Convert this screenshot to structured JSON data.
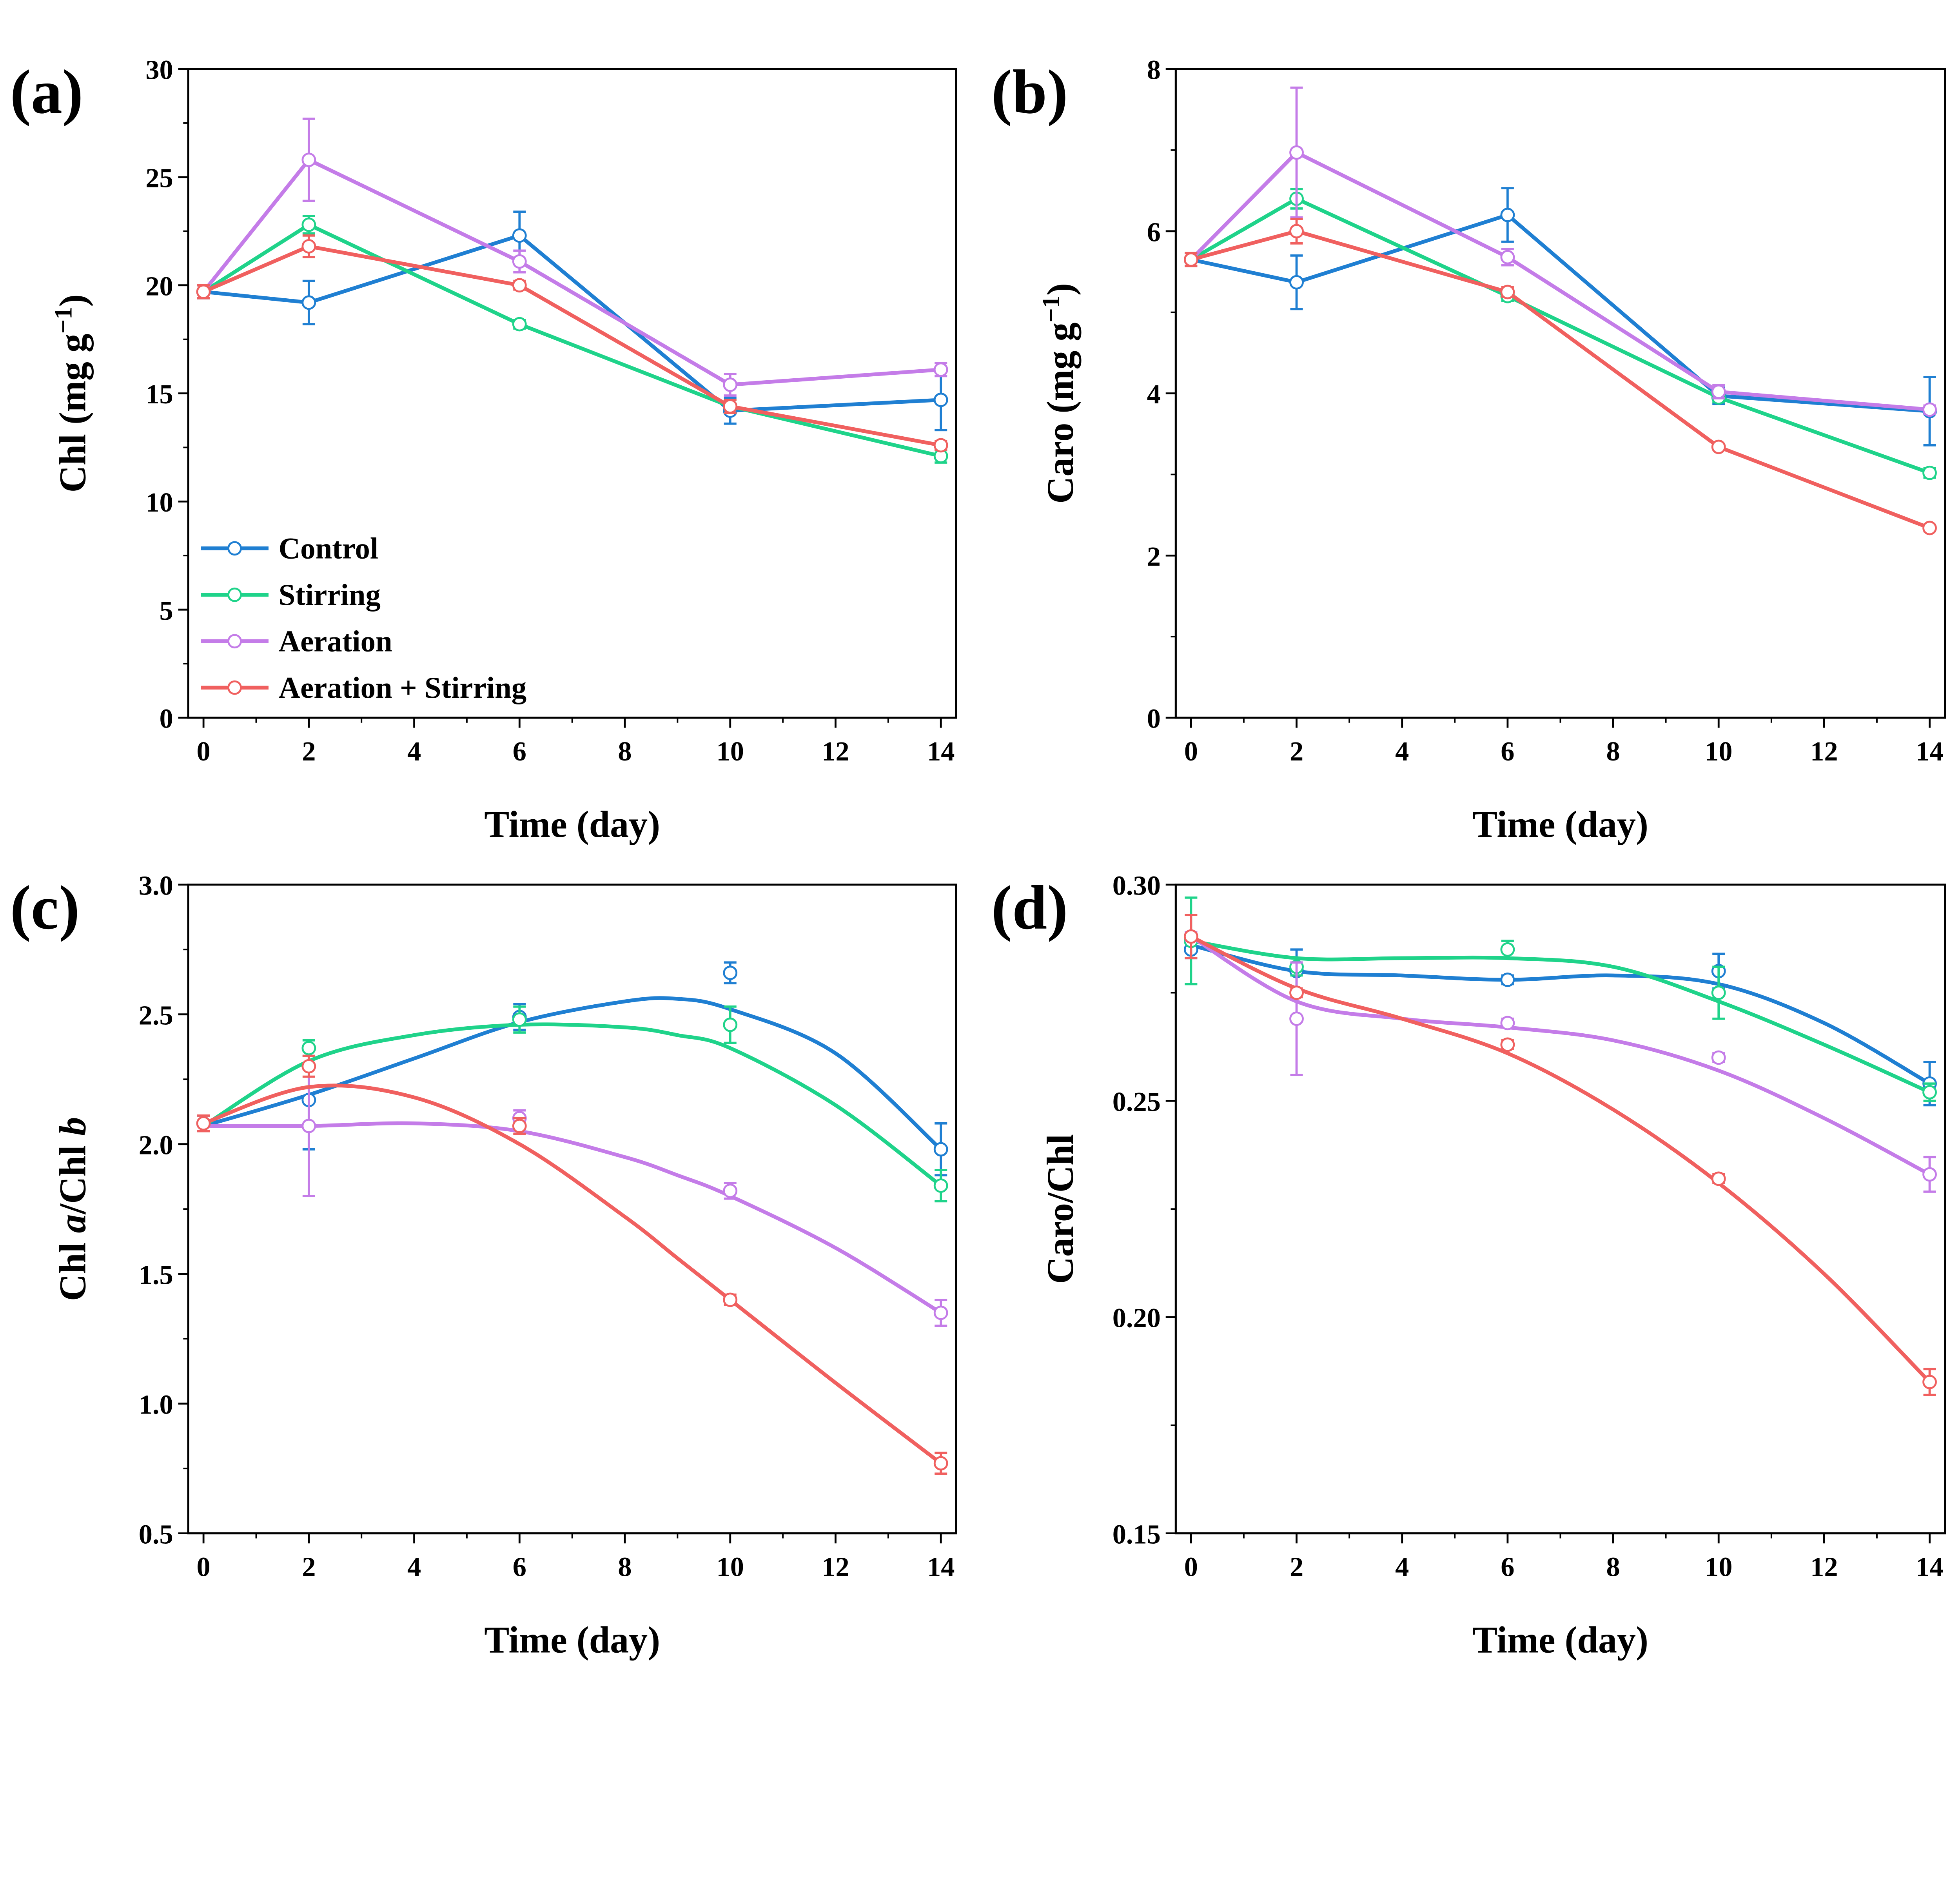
{
  "series_colors": {
    "Control": "#1f7fd2",
    "Stirring": "#1fd38a",
    "Aeration": "#c47ce8",
    "Aeration + Stirring": "#f0605f"
  },
  "chart_data": [
    {
      "panel": "(a)",
      "type": "line",
      "xlabel": "Time (day)",
      "ylabel_parts": [
        {
          "t": "Chl (mg g",
          "s": "n"
        },
        {
          "t": "−1",
          "s": "sup"
        },
        {
          "t": ")",
          "s": "n"
        }
      ],
      "xlim": [
        -0.29,
        14.29
      ],
      "ylim": [
        0,
        30
      ],
      "xticks": [
        0,
        2,
        4,
        6,
        8,
        10,
        12,
        14
      ],
      "yticks": [
        0,
        5,
        10,
        15,
        20,
        25,
        30
      ],
      "x": [
        0,
        2,
        6,
        10,
        14
      ],
      "smooth": false,
      "legend": {
        "placement": "bottom-left",
        "entries": [
          "Control",
          "Stirring",
          "Aeration",
          "Aeration + Stirring"
        ]
      },
      "series": [
        {
          "name": "Control",
          "values": [
            19.7,
            19.2,
            22.3,
            14.2,
            14.7
          ],
          "err": [
            0.3,
            1.0,
            1.1,
            0.6,
            1.4
          ]
        },
        {
          "name": "Stirring",
          "values": [
            19.7,
            22.8,
            18.2,
            14.4,
            12.1
          ],
          "err": [
            0.3,
            0.4,
            0.2,
            0.3,
            0.3
          ]
        },
        {
          "name": "Aeration",
          "values": [
            19.7,
            25.8,
            21.1,
            15.4,
            16.1
          ],
          "err": [
            0.3,
            1.9,
            0.5,
            0.5,
            0.3
          ]
        },
        {
          "name": "Aeration + Stirring",
          "values": [
            19.7,
            21.8,
            20.0,
            14.4,
            12.6
          ],
          "err": [
            0.3,
            0.5,
            0.2,
            0.3,
            0.2
          ]
        }
      ]
    },
    {
      "panel": "(b)",
      "type": "line",
      "xlabel": "Time (day)",
      "ylabel_parts": [
        {
          "t": "Caro (mg g",
          "s": "n"
        },
        {
          "t": "−1",
          "s": "sup"
        },
        {
          "t": ")",
          "s": "n"
        }
      ],
      "xlim": [
        -0.29,
        14.29
      ],
      "ylim": [
        0,
        8
      ],
      "xticks": [
        0,
        2,
        4,
        6,
        8,
        10,
        12,
        14
      ],
      "yticks": [
        0,
        2,
        4,
        6,
        8
      ],
      "x": [
        0,
        2,
        6,
        10,
        14
      ],
      "smooth": false,
      "series": [
        {
          "name": "Control",
          "values": [
            5.65,
            5.37,
            6.2,
            3.97,
            3.78
          ],
          "err": [
            0.08,
            0.33,
            0.33,
            0.1,
            0.42
          ]
        },
        {
          "name": "Stirring",
          "values": [
            5.65,
            6.4,
            5.2,
            3.95,
            3.02
          ],
          "err": [
            0.08,
            0.12,
            0.06,
            0.06,
            0.06
          ]
        },
        {
          "name": "Aeration",
          "values": [
            5.65,
            6.97,
            5.68,
            4.02,
            3.8
          ],
          "err": [
            0.08,
            0.8,
            0.1,
            0.08,
            0.05
          ]
        },
        {
          "name": "Aeration + Stirring",
          "values": [
            5.65,
            6.0,
            5.25,
            3.34,
            2.34
          ],
          "err": [
            0.08,
            0.15,
            0.06,
            0.03,
            0.04
          ]
        }
      ]
    },
    {
      "panel": "(c)",
      "type": "scatter",
      "xlabel": "Time (day)",
      "ylabel_parts": [
        {
          "t": "Chl ",
          "s": "n"
        },
        {
          "t": "a",
          "s": "i"
        },
        {
          "t": "/Chl ",
          "s": "n"
        },
        {
          "t": "b",
          "s": "i"
        }
      ],
      "xlim": [
        -0.29,
        14.29
      ],
      "ylim": [
        0.5,
        3.0
      ],
      "xticks": [
        0,
        2,
        4,
        6,
        8,
        10,
        12,
        14
      ],
      "yticks": [
        0.5,
        1.0,
        1.5,
        2.0,
        2.5,
        3.0
      ],
      "x": [
        0,
        2,
        6,
        10,
        14
      ],
      "smooth": true,
      "fit_x": [
        0,
        2,
        4,
        6,
        8,
        9,
        10,
        12,
        14
      ],
      "series": [
        {
          "name": "Control",
          "values": [
            2.08,
            2.17,
            2.49,
            2.66,
            1.98
          ],
          "err": [
            0.03,
            0.19,
            0.05,
            0.04,
            0.1
          ],
          "fit": [
            2.07,
            2.19,
            2.33,
            2.47,
            2.55,
            2.56,
            2.52,
            2.35,
            1.98
          ]
        },
        {
          "name": "Stirring",
          "values": [
            2.08,
            2.37,
            2.48,
            2.46,
            1.84
          ],
          "err": [
            0.03,
            0.03,
            0.05,
            0.07,
            0.06
          ],
          "fit": [
            2.07,
            2.32,
            2.42,
            2.46,
            2.45,
            2.42,
            2.37,
            2.15,
            1.84
          ]
        },
        {
          "name": "Aeration",
          "values": [
            2.08,
            2.07,
            2.1,
            1.82,
            1.35
          ],
          "err": [
            0.03,
            0.27,
            0.03,
            0.03,
            0.05
          ],
          "fit": [
            2.07,
            2.07,
            2.08,
            2.05,
            1.95,
            1.88,
            1.8,
            1.6,
            1.35
          ]
        },
        {
          "name": "Aeration + Stirring",
          "values": [
            2.08,
            2.3,
            2.07,
            1.4,
            0.77
          ],
          "err": [
            0.03,
            0.04,
            0.03,
            0.02,
            0.04
          ],
          "fit": [
            2.08,
            2.22,
            2.18,
            2.0,
            1.72,
            1.56,
            1.4,
            1.08,
            0.77
          ]
        }
      ]
    },
    {
      "panel": "(d)",
      "type": "scatter",
      "xlabel": "Time (day)",
      "ylabel_parts": [
        {
          "t": "Caro/Chl",
          "s": "n"
        }
      ],
      "xlim": [
        -0.29,
        14.29
      ],
      "ylim": [
        0.15,
        0.3
      ],
      "xticks": [
        0,
        2,
        4,
        6,
        8,
        10,
        12,
        14
      ],
      "yticks": [
        0.15,
        0.2,
        0.25,
        0.3
      ],
      "ytick_decimals": 2,
      "x": [
        0,
        2,
        6,
        10,
        14
      ],
      "smooth": true,
      "fit_x": [
        0,
        2,
        4,
        6,
        8,
        10,
        12,
        14
      ],
      "series": [
        {
          "name": "Control",
          "values": [
            0.285,
            0.28,
            0.278,
            0.28,
            0.254
          ],
          "err": [
            0.002,
            0.005,
            0.001,
            0.004,
            0.005
          ],
          "fit": [
            0.286,
            0.28,
            0.279,
            0.278,
            0.279,
            0.277,
            0.268,
            0.254
          ]
        },
        {
          "name": "Stirring",
          "values": [
            0.287,
            0.281,
            0.285,
            0.275,
            0.252
          ],
          "err": [
            0.01,
            0.002,
            0.002,
            0.006,
            0.002
          ],
          "fit": [
            0.287,
            0.283,
            0.283,
            0.283,
            0.281,
            0.273,
            0.263,
            0.252
          ]
        },
        {
          "name": "Aeration",
          "values": [
            0.288,
            0.269,
            0.268,
            0.26,
            0.233
          ],
          "err": [
            0.001,
            0.013,
            0.001,
            0.001,
            0.004
          ],
          "fit": [
            0.288,
            0.273,
            0.269,
            0.267,
            0.264,
            0.257,
            0.246,
            0.233
          ]
        },
        {
          "name": "Aeration + Stirring",
          "values": [
            0.288,
            0.275,
            0.263,
            0.232,
            0.185
          ],
          "err": [
            0.005,
            0.001,
            0.001,
            0.001,
            0.003
          ],
          "fit": [
            0.288,
            0.276,
            0.269,
            0.261,
            0.248,
            0.231,
            0.21,
            0.185
          ]
        }
      ]
    }
  ]
}
